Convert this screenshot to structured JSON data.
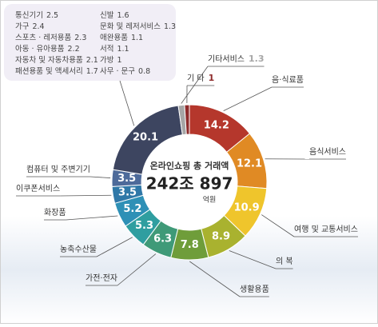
{
  "chart_data": {
    "type": "pie",
    "center_title": "온라인쇼핑 총 거래액",
    "center_value": "242조 897",
    "center_unit": "억원",
    "categories": [
      "음·식료품",
      "음식서비스",
      "여행 및 교통서비스",
      "의 복",
      "생활용품",
      "가전·전자",
      "농축수산물",
      "화장품",
      "이쿠폰서비스",
      "컴퓨터 및 주변기기",
      null,
      "기타서비스",
      "기 타"
    ],
    "values": [
      14.2,
      12.1,
      10.9,
      8.9,
      7.8,
      6.3,
      5.3,
      5.2,
      3.5,
      3.5,
      20.1,
      1.3,
      1.0
    ],
    "colors": [
      "#b5372c",
      "#e08a24",
      "#efc52c",
      "#a9b22f",
      "#6f9d3a",
      "#3f9a78",
      "#2f9ea0",
      "#2e90b6",
      "#2f78a8",
      "#4d6a9a",
      "#3d4560",
      "#a6a6a6",
      "#8e2b2b"
    ],
    "breakdown": [
      {
        "name": "통신기기",
        "value": 2.5
      },
      {
        "name": "가구",
        "value": 2.4
      },
      {
        "name": "스포츠 · 레저용품",
        "value": 2.3
      },
      {
        "name": "아동 · 유아용품",
        "value": 2.2
      },
      {
        "name": "자동차 및 자동차용품",
        "value": 2.1
      },
      {
        "name": "패션용품 및 액세서리",
        "value": 1.7
      },
      {
        "name": "신발",
        "value": 1.6
      },
      {
        "name": "문화 및 레저서비스",
        "value": 1.3
      },
      {
        "name": "애완용품",
        "value": 1.1
      },
      {
        "name": "서적",
        "value": 1.1
      },
      {
        "name": "가방",
        "value": 1.0
      },
      {
        "name": "사무 · 문구",
        "value": 0.8
      }
    ]
  }
}
